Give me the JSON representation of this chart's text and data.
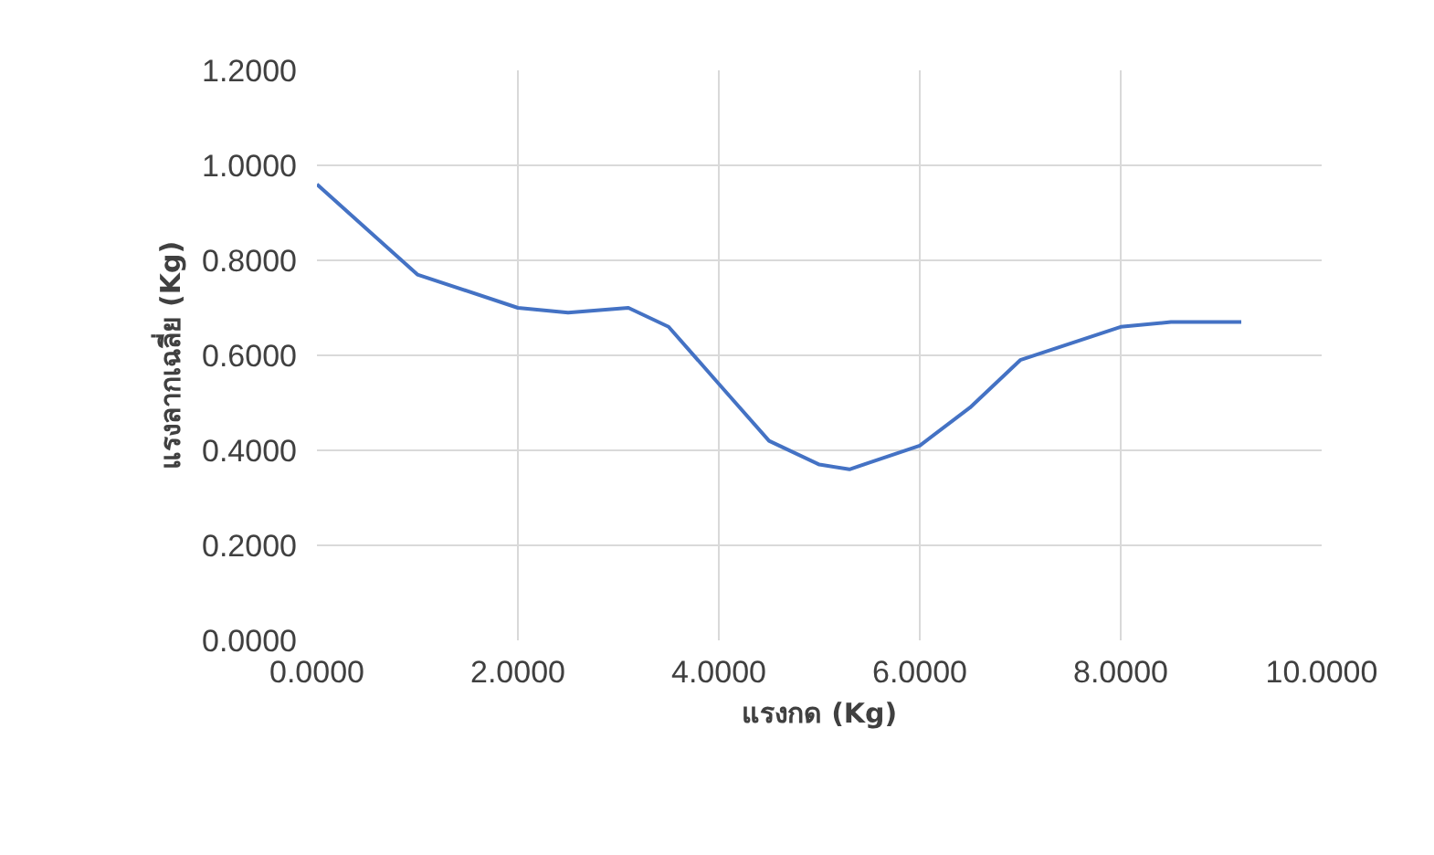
{
  "chart_data": {
    "type": "line",
    "xlabel": "แรงกด (Kg)",
    "ylabel": "แรงลากเฉลี่ย (Kg)",
    "x": [
      0,
      1,
      2,
      2.5,
      3.1,
      3.5,
      4,
      4.5,
      5,
      5.3,
      6,
      6.5,
      7,
      8,
      8.5,
      9.2
    ],
    "series": [
      {
        "color": "#4472c4",
        "values": [
          0.96,
          0.77,
          0.7,
          0.69,
          0.7,
          0.66,
          0.54,
          0.42,
          0.37,
          0.36,
          0.41,
          0.49,
          0.59,
          0.66,
          0.67,
          0.67
        ]
      }
    ],
    "xlim": [
      0,
      10
    ],
    "ylim": [
      0,
      1.2
    ],
    "xticks": [
      {
        "value": 0,
        "label": "0.0000"
      },
      {
        "value": 2,
        "label": "2.0000"
      },
      {
        "value": 4,
        "label": "4.0000"
      },
      {
        "value": 6,
        "label": "6.0000"
      },
      {
        "value": 8,
        "label": "8.0000"
      },
      {
        "value": 10,
        "label": "10.0000"
      }
    ],
    "yticks": [
      {
        "value": 0,
        "label": "0.0000"
      },
      {
        "value": 0.2,
        "label": "0.2000"
      },
      {
        "value": 0.4,
        "label": "0.4000"
      },
      {
        "value": 0.6,
        "label": "0.6000"
      },
      {
        "value": 0.8,
        "label": "0.8000"
      },
      {
        "value": 1.0,
        "label": "1.0000"
      },
      {
        "value": 1.2,
        "label": "1.2000"
      }
    ],
    "grid": true,
    "marker": "none",
    "line_style": "solid"
  }
}
